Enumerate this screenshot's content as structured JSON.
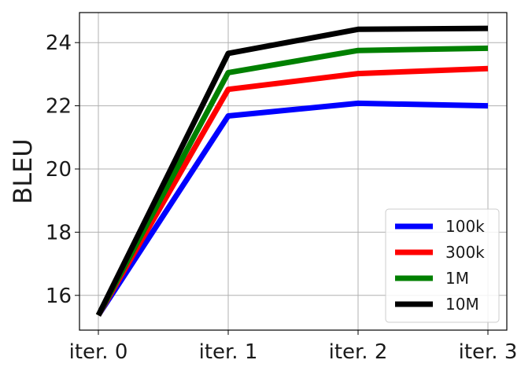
{
  "chart_data": {
    "type": "line",
    "title": "",
    "xlabel": "",
    "ylabel": "BLEU",
    "categories": [
      "iter. 0",
      "iter. 1",
      "iter. 2",
      "iter. 3"
    ],
    "ylim": [
      14.9,
      24.95
    ],
    "yticks": [
      16,
      18,
      20,
      22,
      24
    ],
    "grid": true,
    "legend": "lower-right",
    "series": [
      {
        "name": "100k",
        "color": "#0000ff",
        "values": [
          15.37,
          21.68,
          22.08,
          22.0
        ]
      },
      {
        "name": "300k",
        "color": "#ff0000",
        "values": [
          15.37,
          22.52,
          23.02,
          23.18
        ]
      },
      {
        "name": "1M",
        "color": "#008000",
        "values": [
          15.37,
          23.05,
          23.75,
          23.82
        ]
      },
      {
        "name": "10M",
        "color": "#000000",
        "values": [
          15.37,
          23.66,
          24.42,
          24.45
        ]
      }
    ]
  }
}
